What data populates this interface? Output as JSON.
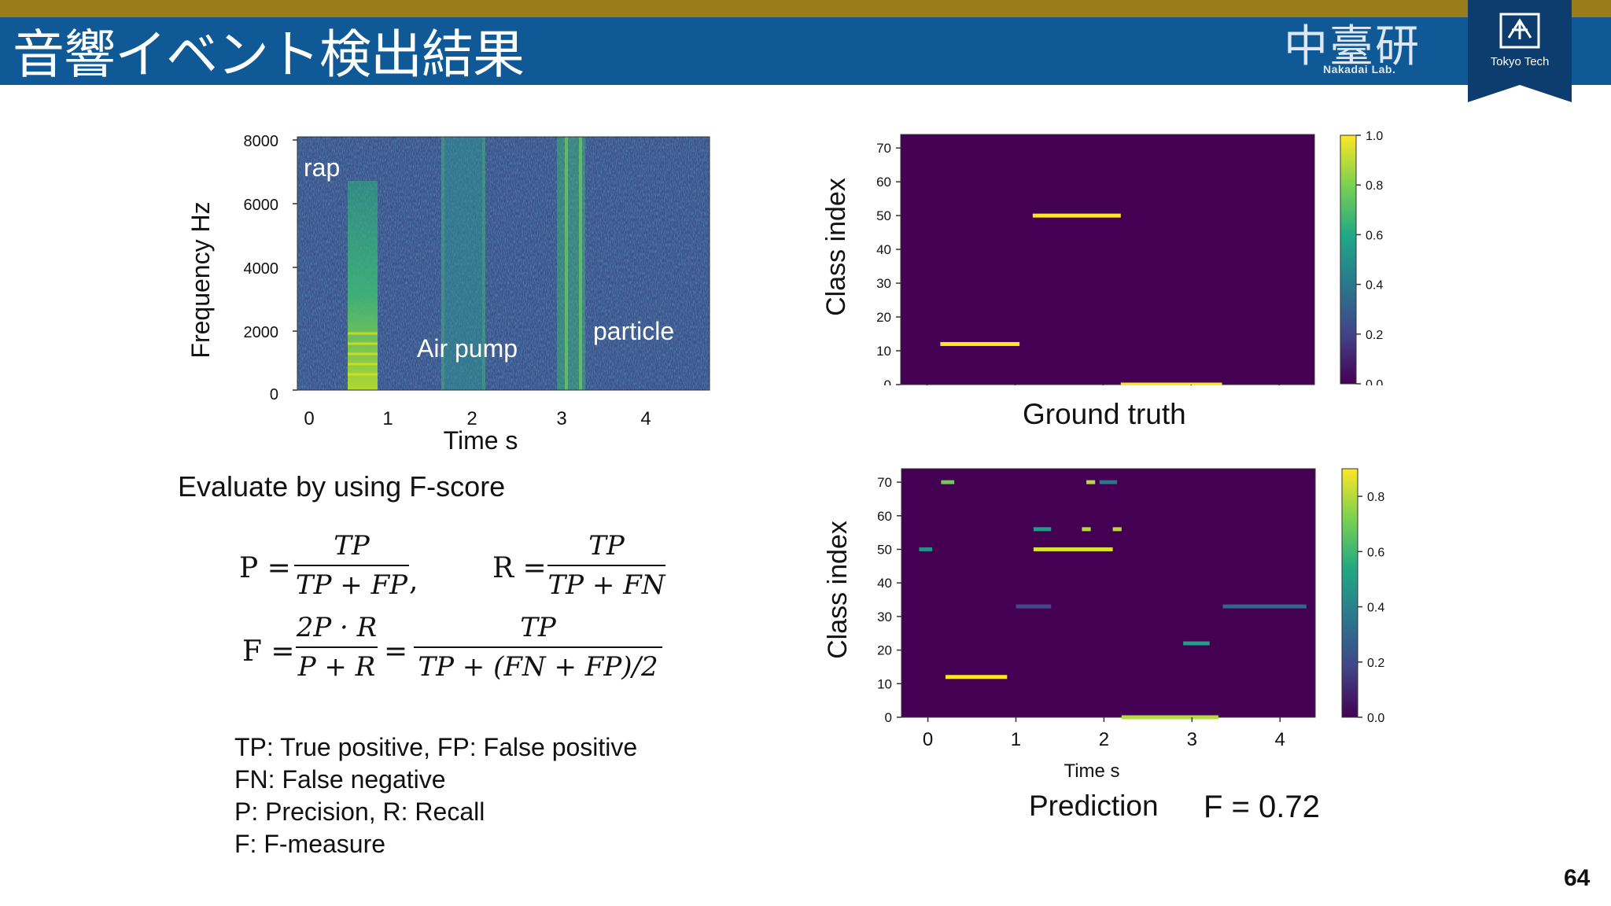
{
  "slide": {
    "title": "音響イベント検出結果",
    "page_number": "64",
    "accent_colors": {
      "gold": "#9a7c1a",
      "blue": "#0f5a96"
    }
  },
  "logos": {
    "lab_kanji": "中臺研",
    "lab_name": "Nakadai Lab.",
    "badge_text": "Tokyo Tech",
    "badge_icon": "tokyo-tech-emblem-icon"
  },
  "spectrogram": {
    "ylabel": "Frequency Hz",
    "xlabel": "Time s",
    "yticks": [
      "8000",
      "6000",
      "4000",
      "2000",
      "0"
    ],
    "xticks": [
      "0",
      "1",
      "2",
      "3",
      "4"
    ],
    "annotations": [
      "rap",
      "Air pump",
      "particle"
    ]
  },
  "evaluation": {
    "heading": "Evaluate by using F-score",
    "p_lhs": "P =",
    "r_lhs": "R =",
    "f_lhs": "F =",
    "eq": "=",
    "comma": ",",
    "p_num": "TP",
    "p_den": "TP + FP",
    "r_num": "TP",
    "r_den": "TP + FN",
    "f1_num": "2P · R",
    "f1_den": "P + R",
    "f2_num": "TP",
    "f2_den": "TP + (FN + FP)/2",
    "definitions": [
      "TP: True positive, FP: False positive",
      "FN: False negative",
      "P: Precision, R: Recall",
      "F: F-measure"
    ]
  },
  "chart_data": [
    {
      "type": "heatmap",
      "title": "",
      "caption": "Ground truth",
      "ylabel": "Class index",
      "xlabel": "",
      "ylim": [
        0,
        74
      ],
      "yticks": [
        "70",
        "60",
        "50",
        "40",
        "30",
        "20",
        "10",
        "0"
      ],
      "xlim": [
        0,
        4.7
      ],
      "colorbar_ticks": [
        "1.0",
        "0.8",
        "0.6",
        "0.4",
        "0.2",
        "0.0"
      ],
      "colorbar_range": [
        0,
        1.0
      ],
      "colormap": "viridis",
      "events": [
        {
          "class": 12,
          "t_start": 0.45,
          "t_end": 1.35,
          "value": 1.0
        },
        {
          "class": 50,
          "t_start": 1.5,
          "t_end": 2.5,
          "value": 1.0
        },
        {
          "class": 0,
          "t_start": 2.5,
          "t_end": 3.65,
          "value": 1.0
        }
      ]
    },
    {
      "type": "heatmap",
      "title": "",
      "caption": "Prediction",
      "score_label": "F = 0.72",
      "ylabel": "Class index",
      "xlabel": "Time s",
      "ylim": [
        0,
        74
      ],
      "yticks": [
        "70",
        "60",
        "50",
        "40",
        "30",
        "20",
        "10",
        "0"
      ],
      "xticks": [
        "0",
        "1",
        "2",
        "3",
        "4"
      ],
      "xlim": [
        0,
        4.7
      ],
      "colorbar_ticks": [
        "0.8",
        "0.6",
        "0.4",
        "0.2",
        "0.0"
      ],
      "colorbar_range": [
        0,
        0.9
      ],
      "colormap": "viridis",
      "events": [
        {
          "class": 12,
          "t_start": 0.5,
          "t_end": 1.2,
          "value": 0.9
        },
        {
          "class": 50,
          "t_start": 1.5,
          "t_end": 2.4,
          "value": 0.85
        },
        {
          "class": 0,
          "t_start": 2.5,
          "t_end": 3.6,
          "value": 0.8
        },
        {
          "class": 22,
          "t_start": 3.2,
          "t_end": 3.5,
          "value": 0.5
        },
        {
          "class": 70,
          "t_start": 0.45,
          "t_end": 0.6,
          "value": 0.7
        },
        {
          "class": 56,
          "t_start": 1.5,
          "t_end": 1.7,
          "value": 0.5
        },
        {
          "class": 56,
          "t_start": 2.05,
          "t_end": 2.15,
          "value": 0.8
        },
        {
          "class": 56,
          "t_start": 2.4,
          "t_end": 2.5,
          "value": 0.8
        },
        {
          "class": 70,
          "t_start": 2.1,
          "t_end": 2.2,
          "value": 0.8
        },
        {
          "class": 70,
          "t_start": 2.25,
          "t_end": 2.45,
          "value": 0.35
        },
        {
          "class": 50,
          "t_start": 0.2,
          "t_end": 0.35,
          "value": 0.45
        },
        {
          "class": 33,
          "t_start": 3.65,
          "t_end": 4.6,
          "value": 0.3
        },
        {
          "class": 33,
          "t_start": 1.3,
          "t_end": 1.7,
          "value": 0.2
        }
      ]
    }
  ]
}
